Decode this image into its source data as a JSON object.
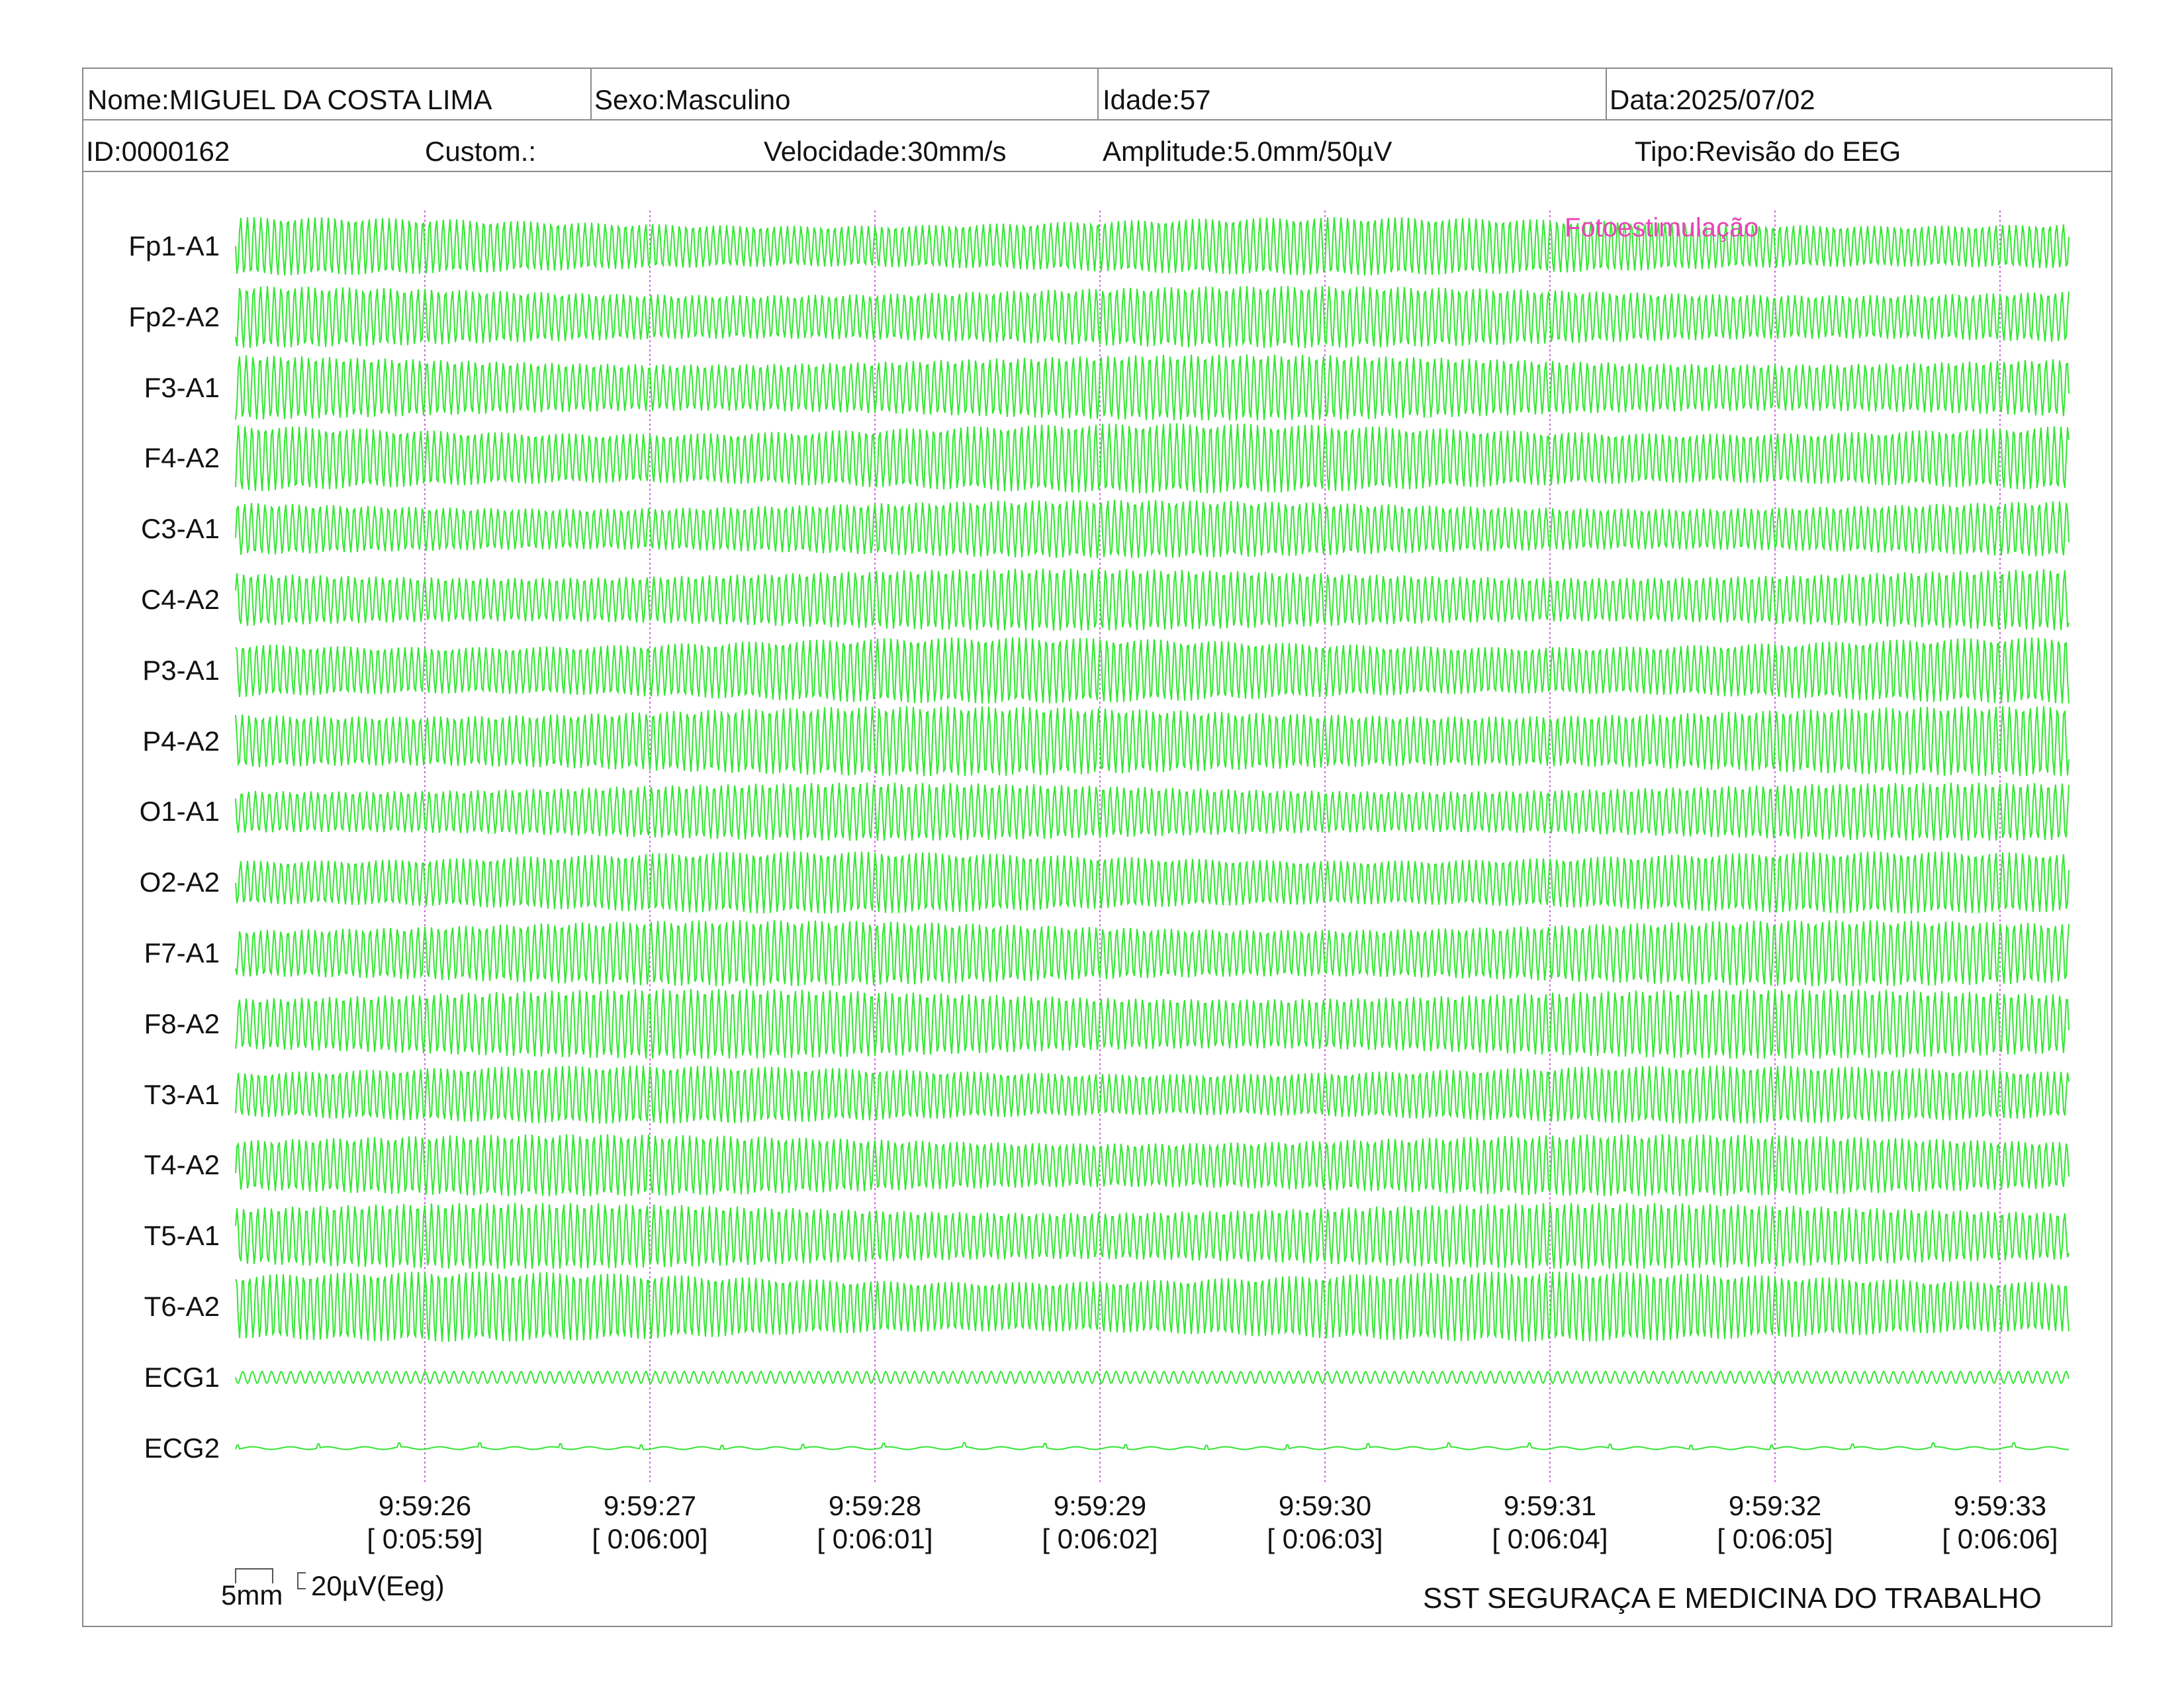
{
  "header": {
    "name": "Nome:MIGUEL DA COSTA LIMA",
    "sex": "Sexo:Masculino",
    "age": "Idade:57",
    "date": "Data:2025/07/02",
    "id": "ID:0000162",
    "custom": "Custom.:",
    "speed": "Velocidade:30mm/s",
    "amplitude": "Amplitude:5.0mm/50µV",
    "type": "Tipo:Revisão do EEG"
  },
  "channels": [
    "Fp1-A1",
    "Fp2-A2",
    "F3-A1",
    "F4-A2",
    "C3-A1",
    "C4-A2",
    "P3-A1",
    "P4-A2",
    "O1-A1",
    "O2-A2",
    "F7-A1",
    "F8-A2",
    "T3-A1",
    "T4-A2",
    "T5-A1",
    "T6-A2",
    "ECG1",
    "ECG2"
  ],
  "event_label": "Fotoestimulação",
  "time_marks": [
    {
      "clock": "9:59:26",
      "elapsed": "[ 0:05:59]"
    },
    {
      "clock": "9:59:27",
      "elapsed": "[ 0:06:00]"
    },
    {
      "clock": "9:59:28",
      "elapsed": "[ 0:06:01]"
    },
    {
      "clock": "9:59:29",
      "elapsed": "[ 0:06:02]"
    },
    {
      "clock": "9:59:30",
      "elapsed": "[ 0:06:03]"
    },
    {
      "clock": "9:59:31",
      "elapsed": "[ 0:06:04]"
    },
    {
      "clock": "9:59:32",
      "elapsed": "[ 0:06:05]"
    },
    {
      "clock": "9:59:33",
      "elapsed": "[ 0:06:06]"
    }
  ],
  "scale": {
    "time": "5mm",
    "amplitude": "20µV(Eeg)"
  },
  "footer": "SST SEGURAÇA E MEDICINA DO TRABALHO",
  "colors": {
    "trace": "#33e633",
    "event": "#e845b8",
    "marker": "#cc66dd",
    "border": "#8a8a8a"
  }
}
